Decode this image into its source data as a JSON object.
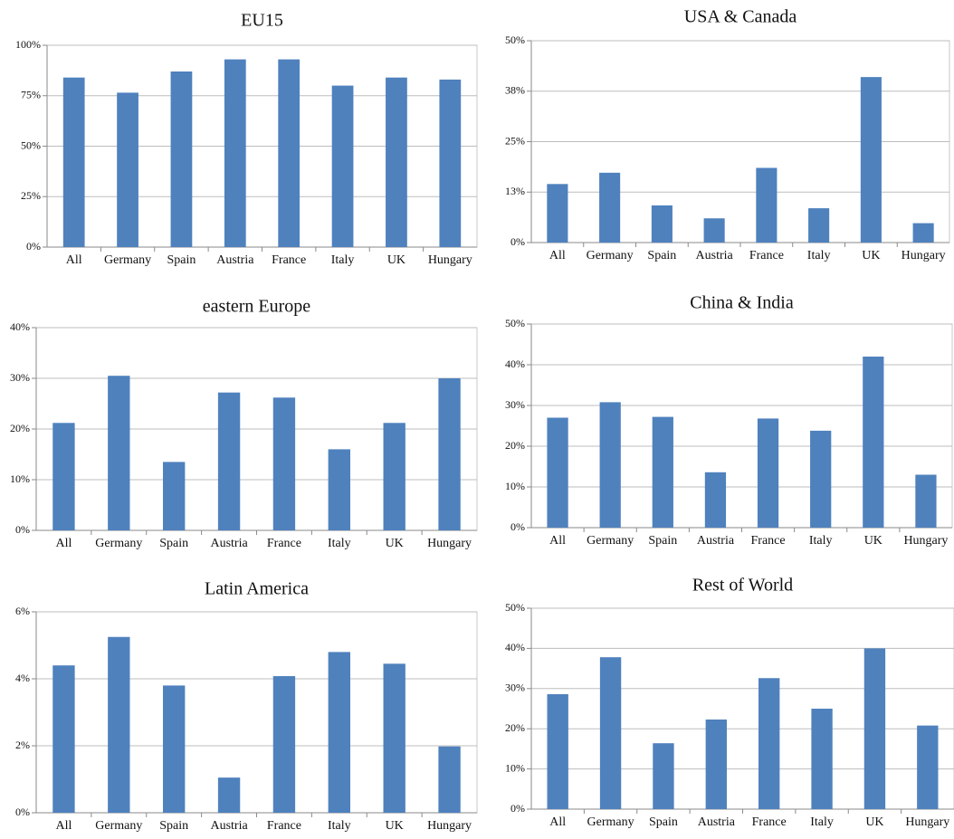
{
  "chart_data": [
    {
      "type": "bar",
      "title": "EU15",
      "categories": [
        "All",
        "Germany",
        "Spain",
        "Austria",
        "France",
        "Italy",
        "UK",
        "Hungary"
      ],
      "values": [
        84,
        76.5,
        87,
        93,
        93,
        80,
        84,
        83
      ],
      "yticks": [
        "0%",
        "25%",
        "50%",
        "75%",
        "100%"
      ],
      "ylim": [
        0,
        100
      ],
      "grid": true,
      "color": "#4f81bd"
    },
    {
      "type": "bar",
      "title": "USA & Canada",
      "categories": [
        "All",
        "Germany",
        "Spain",
        "Austria",
        "France",
        "Italy",
        "UK",
        "Hungary"
      ],
      "values": [
        14.5,
        17.3,
        9.2,
        6,
        18.5,
        8.5,
        41,
        4.8
      ],
      "yticks": [
        "0%",
        "13%",
        "25%",
        "38%",
        "50%"
      ],
      "ylim": [
        0,
        50
      ],
      "grid": true,
      "color": "#4f81bd"
    },
    {
      "type": "bar",
      "title": "eastern Europe",
      "categories": [
        "All",
        "Germany",
        "Spain",
        "Austria",
        "France",
        "Italy",
        "UK",
        "Hungary"
      ],
      "values": [
        21.2,
        30.5,
        13.5,
        27.2,
        26.2,
        16,
        21.2,
        30
      ],
      "yticks": [
        "0%",
        "10%",
        "20%",
        "30%",
        "40%"
      ],
      "ylim": [
        0,
        40
      ],
      "grid": true,
      "color": "#4f81bd"
    },
    {
      "type": "bar",
      "title": "China & India",
      "categories": [
        "All",
        "Germany",
        "Spain",
        "Austria",
        "France",
        "Italy",
        "UK",
        "Hungary"
      ],
      "values": [
        27,
        30.8,
        27.2,
        13.6,
        26.8,
        23.8,
        42,
        13
      ],
      "yticks": [
        "0%",
        "10%",
        "20%",
        "30%",
        "40%",
        "50%"
      ],
      "ylim": [
        0,
        50
      ],
      "grid": true,
      "color": "#4f81bd"
    },
    {
      "type": "bar",
      "title": "Latin America",
      "categories": [
        "All",
        "Germany",
        "Spain",
        "Austria",
        "France",
        "Italy",
        "UK",
        "Hungary"
      ],
      "values": [
        4.4,
        5.25,
        3.8,
        1.05,
        4.08,
        4.8,
        4.45,
        1.98
      ],
      "yticks": [
        "0%",
        "2%",
        "4%",
        "6%"
      ],
      "ylim": [
        0,
        6
      ],
      "grid": true,
      "color": "#4f81bd"
    },
    {
      "type": "bar",
      "title": "Rest of World",
      "categories": [
        "All",
        "Germany",
        "Spain",
        "Austria",
        "France",
        "Italy",
        "UK",
        "Hungary"
      ],
      "values": [
        28.6,
        37.8,
        16.4,
        22.3,
        32.6,
        25,
        40,
        20.8
      ],
      "yticks": [
        "0%",
        "10%",
        "20%",
        "30%",
        "40%",
        "50%"
      ],
      "ylim": [
        0,
        50
      ],
      "grid": true,
      "color": "#4f81bd"
    }
  ]
}
